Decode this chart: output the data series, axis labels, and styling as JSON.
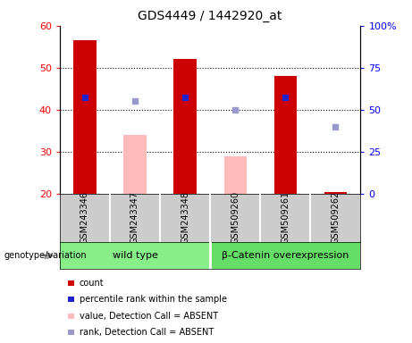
{
  "title": "GDS4449 / 1442920_at",
  "samples": [
    "GSM243346",
    "GSM243347",
    "GSM243348",
    "GSM509260",
    "GSM509261",
    "GSM509262"
  ],
  "red_bars": [
    56.5,
    null,
    52.0,
    null,
    48.0,
    20.5
  ],
  "pink_bars": [
    null,
    34.0,
    null,
    29.0,
    null,
    null
  ],
  "blue_squares": [
    43.0,
    null,
    43.0,
    null,
    43.0,
    null
  ],
  "lightblue_squares": [
    null,
    42.0,
    null,
    40.0,
    null,
    36.0
  ],
  "ylim_left": [
    20,
    60
  ],
  "ylim_right": [
    0,
    100
  ],
  "yticks_left": [
    20,
    30,
    40,
    50,
    60
  ],
  "yticks_right": [
    0,
    25,
    50,
    75,
    100
  ],
  "ytick_labels_right": [
    "0",
    "25",
    "50",
    "75",
    "100%"
  ],
  "red_color": "#cc0000",
  "pink_color": "#ffbbbb",
  "blue_color": "#2222cc",
  "lightblue_color": "#9999cc",
  "group1_label": "wild type",
  "group2_label": "β-Catenin overexpression",
  "group1_color": "#88ee88",
  "group2_color": "#66dd66",
  "plot_bg": "#ffffff",
  "bar_bg": "#cccccc",
  "genotype_label": "genotype/variation",
  "legend_items": [
    {
      "label": "count",
      "color": "#cc0000"
    },
    {
      "label": "percentile rank within the sample",
      "color": "#2222cc"
    },
    {
      "label": "value, Detection Call = ABSENT",
      "color": "#ffbbbb"
    },
    {
      "label": "rank, Detection Call = ABSENT",
      "color": "#9999cc"
    }
  ]
}
